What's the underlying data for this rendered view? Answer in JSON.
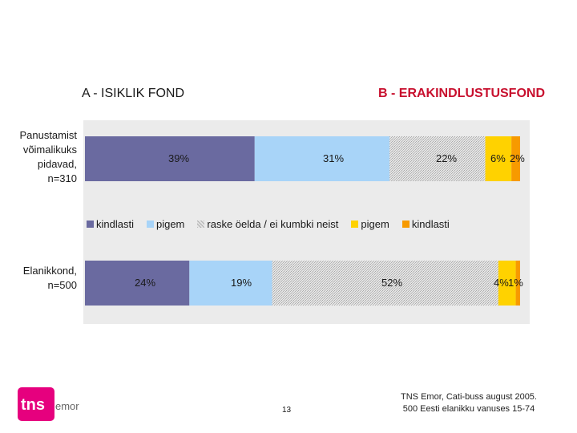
{
  "headers": {
    "a": "A -  ISIKLIK FOND",
    "b": "B - ERAKINDLUSTUSFOND"
  },
  "colors": {
    "background": "#ebebeb",
    "kindlasti_a": "#6a6aa0",
    "pigem_a": "#a8d4f8",
    "raske": "#d2d2d2",
    "pigem_b": "#ffd200",
    "kindlasti_b": "#f79a00"
  },
  "chart_data": {
    "type": "bar",
    "orientation": "horizontal",
    "stacked": true,
    "xlim": [
      0,
      100
    ],
    "categories": [
      "Panustamist\nvõimalikuks\npidavad,\nn=310",
      "Elanikkond,\nn=500"
    ],
    "series": [
      {
        "name": "kindlasti",
        "values": [
          39,
          24
        ],
        "labels": [
          "39%",
          "24%"
        ]
      },
      {
        "name": "pigem",
        "values": [
          31,
          19
        ],
        "labels": [
          "31%",
          "19%"
        ]
      },
      {
        "name": "raske öelda / ei kumbki neist",
        "values": [
          22,
          52
        ],
        "labels": [
          "22%",
          "52%"
        ]
      },
      {
        "name": "pigem",
        "values": [
          6,
          4
        ],
        "labels": [
          "6%",
          "4%"
        ]
      },
      {
        "name": "kindlasti",
        "values": [
          2,
          1
        ],
        "labels": [
          "2%",
          "1%"
        ]
      }
    ],
    "legend_position": "between-bars"
  },
  "logo": {
    "text_main": "tns",
    "text_sub": "emor"
  },
  "footer": {
    "page_number": "13",
    "source_line1": "TNS Emor, Cati-buss august 2005.",
    "source_line2": "500 Eesti elanikku vanuses 15-74"
  }
}
